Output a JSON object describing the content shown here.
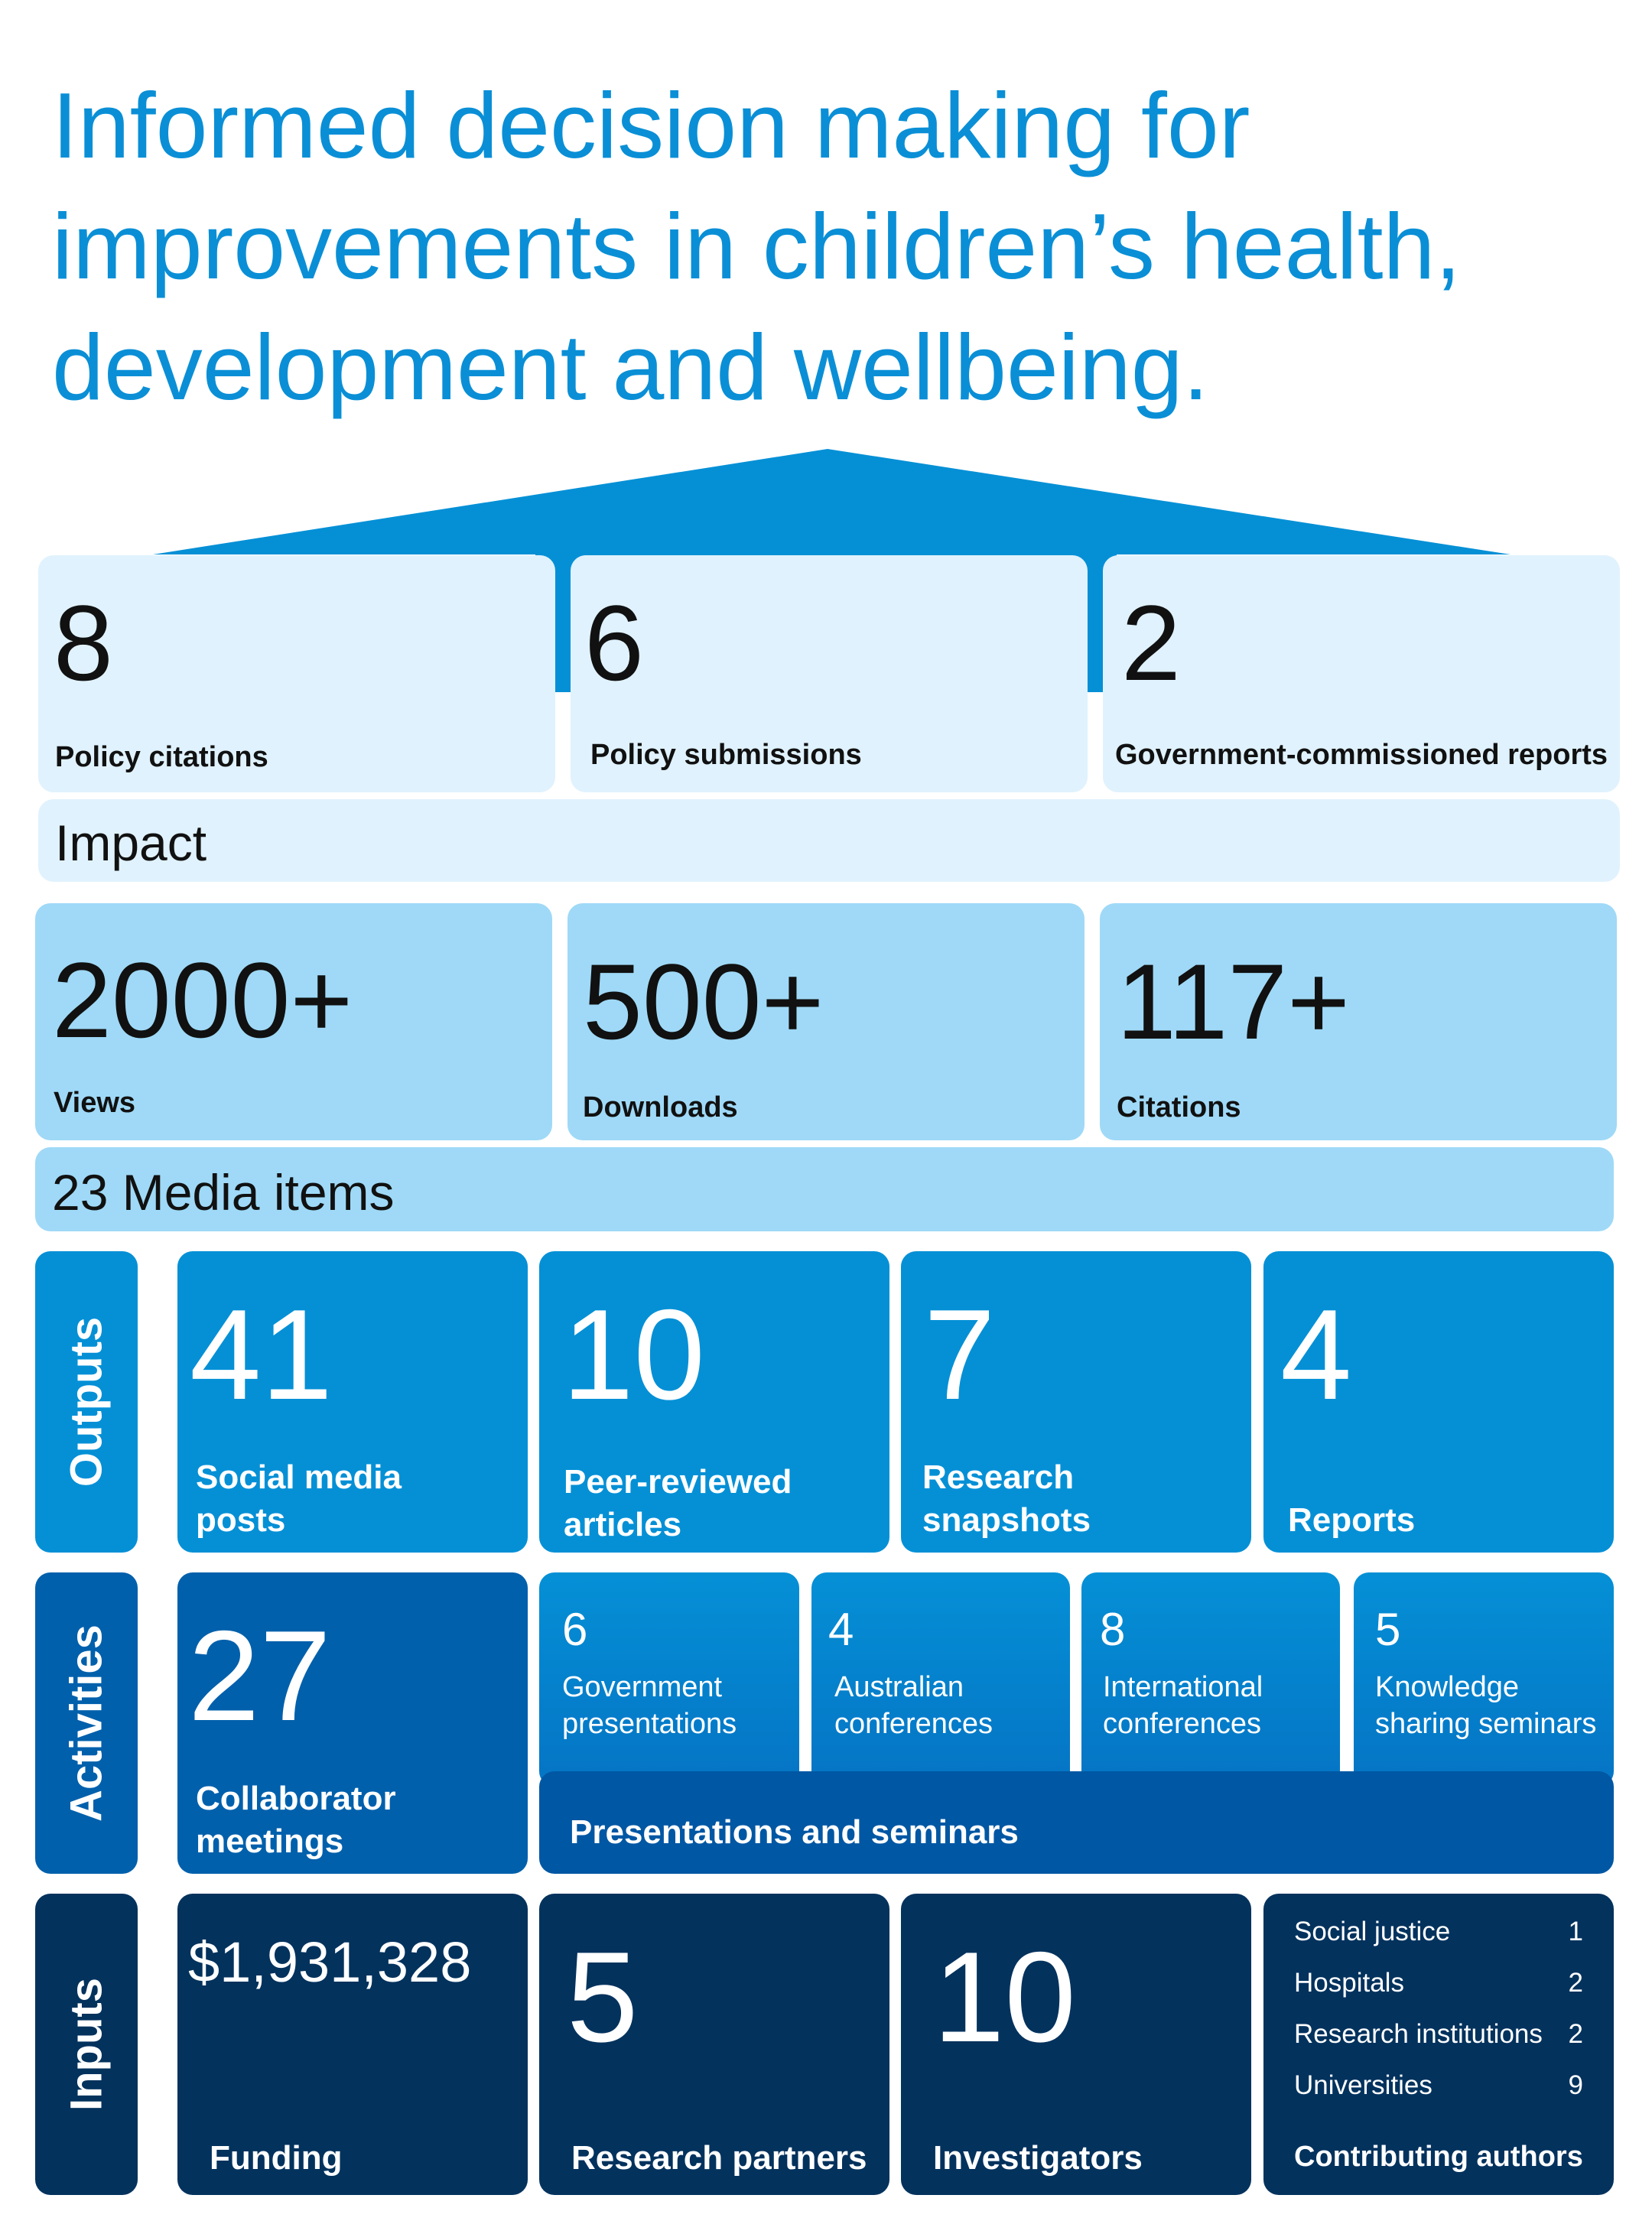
{
  "title_lines": [
    "Informed decision making for",
    "improvements in children’s health,",
    "development and wellbeing."
  ],
  "impact": {
    "items": [
      {
        "value": "8",
        "label": "Policy citations"
      },
      {
        "value": "6",
        "label": "Policy submissions"
      },
      {
        "value": "2",
        "label": "Government-commissioned reports"
      }
    ],
    "band_label": "Impact"
  },
  "reach": {
    "items": [
      {
        "value": "2000+",
        "label": "Views"
      },
      {
        "value": "500+",
        "label": "Downloads"
      },
      {
        "value": "117+",
        "label": "Citations"
      }
    ],
    "band_label": "23 Media items"
  },
  "outputs": {
    "side_label": "Outputs",
    "items": [
      {
        "value": "41",
        "label_lines": [
          "Social media",
          "posts"
        ]
      },
      {
        "value": "10",
        "label_lines": [
          "Peer-reviewed",
          "articles"
        ]
      },
      {
        "value": "7",
        "label_lines": [
          "Research",
          "snapshots"
        ]
      },
      {
        "value": "4",
        "label_lines": [
          "Reports"
        ]
      }
    ]
  },
  "activities": {
    "side_label": "Activities",
    "collaborator": {
      "value": "27",
      "label_lines": [
        "Collaborator",
        "meetings"
      ]
    },
    "presentations": [
      {
        "value": "6",
        "label_lines": [
          "Government",
          "presentations"
        ]
      },
      {
        "value": "4",
        "label_lines": [
          "Australian",
          "conferences"
        ]
      },
      {
        "value": "8",
        "label_lines": [
          "International",
          "conferences"
        ]
      },
      {
        "value": "5",
        "label_lines": [
          "Knowledge",
          "sharing seminars"
        ]
      }
    ],
    "presentations_label": "Presentations and seminars"
  },
  "inputs": {
    "side_label": "Inputs",
    "items": [
      {
        "value": "$1,931,328",
        "label": "Funding"
      },
      {
        "value": "5",
        "label": "Research partners"
      },
      {
        "value": "10",
        "label": "Investigators"
      }
    ],
    "contributing_authors": {
      "rows": [
        {
          "name": "Social justice",
          "count": "1"
        },
        {
          "name": "Hospitals",
          "count": "2"
        },
        {
          "name": "Research institutions",
          "count": "2"
        },
        {
          "name": "Universities",
          "count": "9"
        }
      ],
      "label": "Contributing authors"
    }
  },
  "colors": {
    "title": "#0a8fd6",
    "roof": "#0590d6",
    "impact_bg": "#e0f2fd",
    "reach_bg": "#9fd9f7",
    "outputs_bg": "#0590d6",
    "activities_bg": "#0060ac",
    "inputs_bg": "#03325d"
  }
}
